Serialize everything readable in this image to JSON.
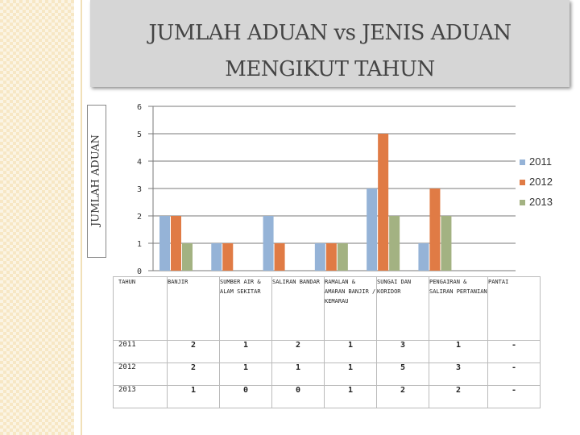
{
  "title_line1": "JUMLAH ADUAN vs JENIS ADUAN",
  "title_line2": "MENGIKUT TAHUN",
  "ylabel": "JUMLAH ADUAN",
  "table_header": "TAHUN",
  "colors": {
    "2011": "#95b3d7",
    "2012": "#e07b45",
    "2013": "#a3b282"
  },
  "chart_data": {
    "type": "bar",
    "categories": [
      "BANJIR",
      "SUMBER AIR & ALAM SEKITAR",
      "SALIRAN BANDAR",
      "RAMALAN & AMARAN BANJIR / KEMARAU",
      "SUNGAI DAN KORIDOR",
      "PENGAIRAN & SALIRAN PERTANIAN",
      "PANTAI"
    ],
    "series": [
      {
        "name": "2011",
        "values": [
          2,
          1,
          2,
          1,
          3,
          1,
          null
        ],
        "labels": [
          "2",
          "1",
          "2",
          "1",
          "3",
          "1",
          "-"
        ]
      },
      {
        "name": "2012",
        "values": [
          2,
          1,
          1,
          1,
          5,
          3,
          null
        ],
        "labels": [
          "2",
          "1",
          "1",
          "1",
          "5",
          "3",
          "-"
        ]
      },
      {
        "name": "2013",
        "values": [
          1,
          0,
          0,
          1,
          2,
          2,
          null
        ],
        "labels": [
          "1",
          "0",
          "0",
          "1",
          "2",
          "2",
          "-"
        ]
      }
    ],
    "yticks": [
      "0",
      "1",
      "2",
      "3",
      "4",
      "5",
      "6"
    ],
    "ylim": [
      0,
      6
    ],
    "legend": "right",
    "ylabel": "JUMLAH ADUAN"
  }
}
